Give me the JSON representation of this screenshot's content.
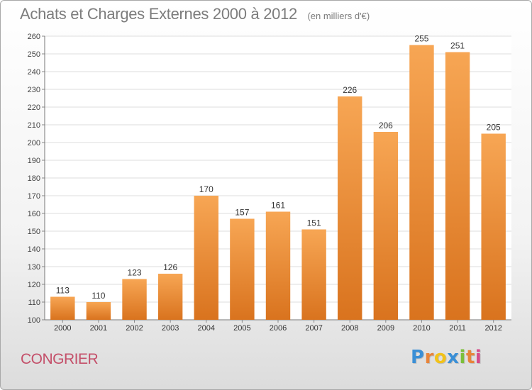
{
  "chart_data": {
    "type": "bar",
    "title": "Achats et Charges Externes 2000 à 2012",
    "unit_label": "(en milliers d'€)",
    "categories": [
      "2000",
      "2001",
      "2002",
      "2003",
      "2004",
      "2005",
      "2006",
      "2007",
      "2008",
      "2009",
      "2010",
      "2011",
      "2012"
    ],
    "values": [
      113,
      110,
      123,
      126,
      170,
      157,
      161,
      151,
      226,
      206,
      255,
      251,
      205
    ],
    "ylim": [
      100,
      260
    ],
    "yticks": [
      100,
      110,
      120,
      130,
      140,
      150,
      160,
      170,
      180,
      190,
      200,
      210,
      220,
      230,
      240,
      250,
      260
    ],
    "grid": true,
    "bar_color_top": "#f7a654",
    "bar_color_bottom": "#d9731e"
  },
  "commune": "CONGRIER",
  "logo": {
    "letters": [
      "P",
      "r",
      "o",
      "x",
      "i",
      "t",
      "i"
    ],
    "colors": [
      "#3a8fd6",
      "#e8843a",
      "#f2c21a",
      "#3a8fd6",
      "#7cbf3a",
      "#e8843a",
      "#d64a8a"
    ]
  }
}
